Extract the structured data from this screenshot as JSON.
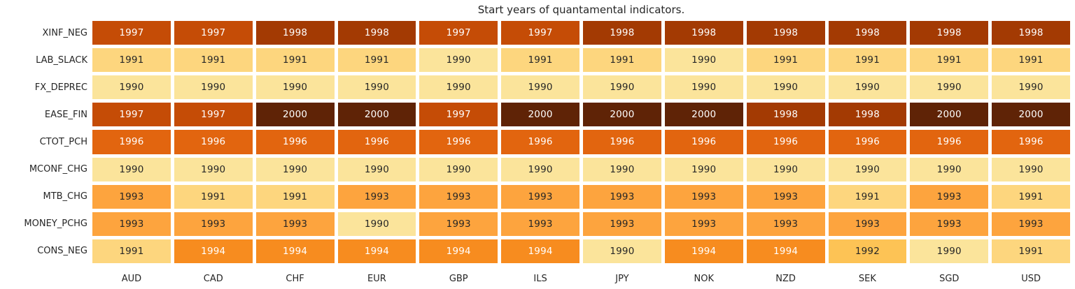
{
  "title": "Start years of quantamental indicators.",
  "chart_data": {
    "type": "heatmap",
    "title": "Start years of quantamental indicators.",
    "rows": [
      "XINF_NEG",
      "LAB_SLACK",
      "FX_DEPREC",
      "EASE_FIN",
      "CTOT_PCH",
      "MCONF_CHG",
      "MTB_CHG",
      "MONEY_PCHG",
      "CONS_NEG"
    ],
    "columns": [
      "AUD",
      "CAD",
      "CHF",
      "EUR",
      "GBP",
      "ILS",
      "JPY",
      "NOK",
      "NZD",
      "SEK",
      "SGD",
      "USD"
    ],
    "values": [
      [
        1997,
        1997,
        1998,
        1998,
        1997,
        1997,
        1998,
        1998,
        1998,
        1998,
        1998,
        1998
      ],
      [
        1991,
        1991,
        1991,
        1991,
        1990,
        1991,
        1991,
        1990,
        1991,
        1991,
        1991,
        1991
      ],
      [
        1990,
        1990,
        1990,
        1990,
        1990,
        1990,
        1990,
        1990,
        1990,
        1990,
        1990,
        1990
      ],
      [
        1997,
        1997,
        2000,
        2000,
        1997,
        2000,
        2000,
        2000,
        1998,
        1998,
        2000,
        2000
      ],
      [
        1996,
        1996,
        1996,
        1996,
        1996,
        1996,
        1996,
        1996,
        1996,
        1996,
        1996,
        1996
      ],
      [
        1990,
        1990,
        1990,
        1990,
        1990,
        1990,
        1990,
        1990,
        1990,
        1990,
        1990,
        1990
      ],
      [
        1993,
        1991,
        1991,
        1993,
        1993,
        1993,
        1993,
        1993,
        1993,
        1991,
        1993,
        1991
      ],
      [
        1993,
        1993,
        1993,
        1990,
        1993,
        1993,
        1993,
        1993,
        1993,
        1993,
        1993,
        1993
      ],
      [
        1991,
        1994,
        1994,
        1994,
        1994,
        1994,
        1990,
        1994,
        1994,
        1992,
        1990,
        1991
      ]
    ],
    "colormap": "YlOrBr",
    "value_range": [
      1990,
      2000
    ],
    "grid": "off",
    "legend": "none",
    "year_colors": {
      "1990": "#fbe49b",
      "1991": "#fdd67e",
      "1992": "#fdc355",
      "1993": "#fda43e",
      "1994": "#f78c1f",
      "1996": "#e2650f",
      "1997": "#c54c06",
      "1998": "#a33a03",
      "2000": "#5f2306"
    },
    "dark_text_color": "#262626",
    "light_text_color": "#ffffff",
    "light_text_min_year": 1994
  }
}
